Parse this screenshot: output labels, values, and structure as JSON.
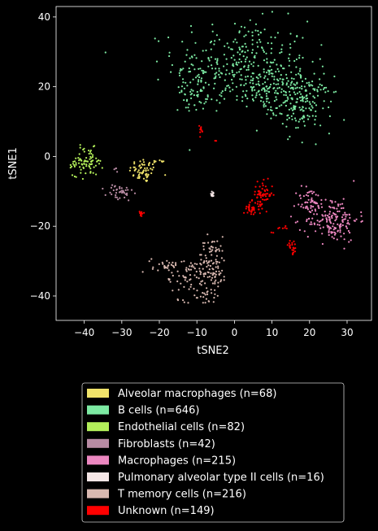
{
  "chart_data": {
    "type": "scatter",
    "xlabel": "tSNE2",
    "ylabel": "tSNE1",
    "xlim": [
      -47.5,
      36.5
    ],
    "ylim": [
      -47,
      43
    ],
    "xticks": [
      -40,
      -30,
      -20,
      -10,
      0,
      10,
      20,
      30
    ],
    "yticks": [
      -40,
      -20,
      0,
      20,
      40
    ],
    "grid": false,
    "legend_position": "bottom-center",
    "background": "#000000",
    "series": [
      {
        "name": "Alveolar macrophages (n=68)",
        "color": "#f0e36a",
        "clusters": [
          {
            "cx": -24,
            "cy": -4,
            "sx": 2.0,
            "sy": 1.8,
            "n": 64
          },
          {
            "cx": -19.5,
            "cy": -1.5,
            "sx": 0.5,
            "sy": 0.3,
            "n": 4
          }
        ]
      },
      {
        "name": "B cells (n=646)",
        "color": "#7deaa3",
        "clusters": [
          {
            "cx": 2,
            "cy": 27,
            "sx": 9,
            "sy": 6,
            "n": 300
          },
          {
            "cx": 18,
            "cy": 15,
            "sx": 4,
            "sy": 4,
            "n": 160
          },
          {
            "cx": -11,
            "cy": 19,
            "sx": 2,
            "sy": 3,
            "n": 56
          },
          {
            "cx": 9,
            "cy": 19,
            "sx": 6,
            "sy": 3,
            "n": 130
          }
        ]
      },
      {
        "name": "Endothelial cells (n=82)",
        "color": "#b3ef5a",
        "clusters": [
          {
            "cx": -39,
            "cy": -1.5,
            "sx": 2.0,
            "sy": 2.0,
            "n": 70
          },
          {
            "cx": -43,
            "cy": -2.5,
            "sx": 0.8,
            "sy": 0.8,
            "n": 12
          }
        ]
      },
      {
        "name": "Fibroblasts (n=42)",
        "color": "#b88ba3",
        "clusters": [
          {
            "cx": -30.5,
            "cy": -10.5,
            "sx": 1.8,
            "sy": 1.3,
            "n": 38
          },
          {
            "cx": -31.5,
            "cy": -3.5,
            "sx": 0.5,
            "sy": 0.5,
            "n": 4
          }
        ]
      },
      {
        "name": "Macrophages (n=215)",
        "color": "#ec87c0",
        "clusters": [
          {
            "cx": 26,
            "cy": -18,
            "sx": 3.5,
            "sy": 3.2,
            "n": 170
          },
          {
            "cx": 20,
            "cy": -13,
            "sx": 1.8,
            "sy": 2.2,
            "n": 45
          }
        ]
      },
      {
        "name": "Pulmonary alveolar type II cells (n=16)",
        "color": "#f5e6e6",
        "clusters": [
          {
            "cx": -5.8,
            "cy": -10.8,
            "sx": 0.35,
            "sy": 0.35,
            "n": 16
          }
        ]
      },
      {
        "name": "T memory cells (n=216)",
        "color": "#d8b8b0",
        "clusters": [
          {
            "cx": -6,
            "cy": -31,
            "sx": 2.0,
            "sy": 4.0,
            "n": 120
          },
          {
            "cx": -13,
            "cy": -35,
            "sx": 2.5,
            "sy": 3.0,
            "n": 50
          },
          {
            "cx": -18,
            "cy": -31,
            "sx": 2.0,
            "sy": 1.0,
            "n": 30
          },
          {
            "cx": -7,
            "cy": -40.5,
            "sx": 1.5,
            "sy": 1.2,
            "n": 16
          }
        ]
      },
      {
        "name": "Unknown (n=149)",
        "color": "#ff0000",
        "clusters": [
          {
            "cx": 7.5,
            "cy": -11,
            "sx": 1.3,
            "sy": 1.8,
            "n": 60
          },
          {
            "cx": 4.5,
            "cy": -15,
            "sx": 1.0,
            "sy": 1.0,
            "n": 35
          },
          {
            "cx": 15.5,
            "cy": -26,
            "sx": 0.6,
            "sy": 1.0,
            "n": 22
          },
          {
            "cx": -9,
            "cy": 7.5,
            "sx": 0.3,
            "sy": 0.8,
            "n": 10
          },
          {
            "cx": -25,
            "cy": -16.5,
            "sx": 0.5,
            "sy": 0.5,
            "n": 12
          },
          {
            "cx": 13,
            "cy": -20.5,
            "sx": 0.8,
            "sy": 0.3,
            "n": 6
          },
          {
            "cx": -5,
            "cy": 4.5,
            "sx": 0.1,
            "sy": 0.1,
            "n": 2
          },
          {
            "cx": 10,
            "cy": -22,
            "sx": 0.5,
            "sy": 0.5,
            "n": 2
          }
        ]
      }
    ]
  }
}
